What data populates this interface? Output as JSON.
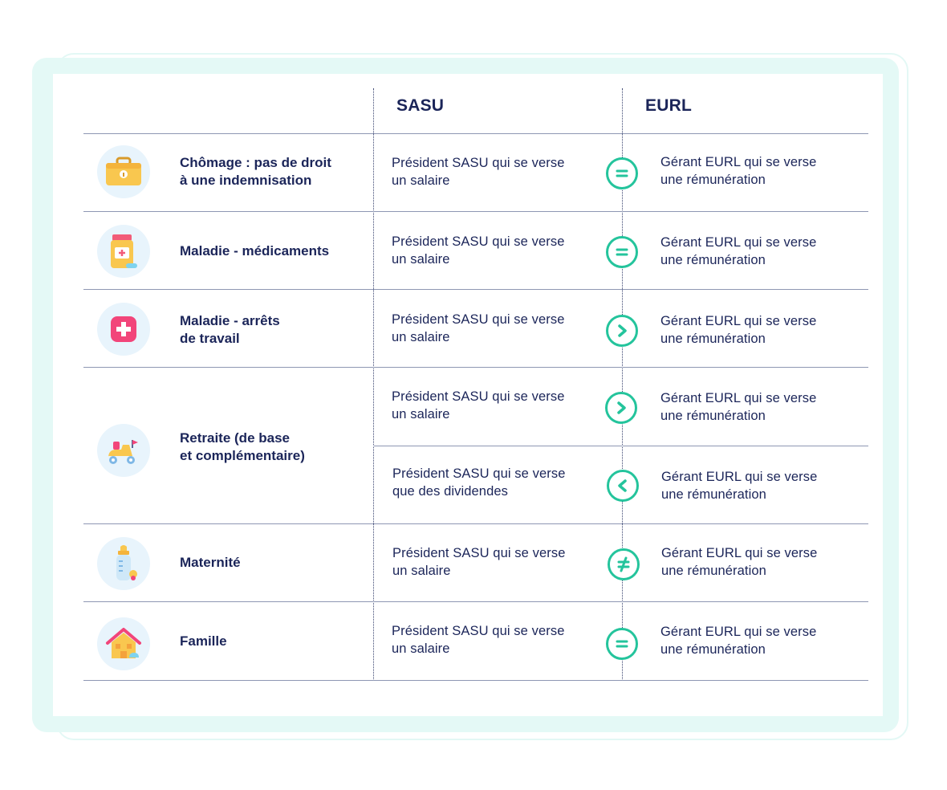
{
  "header": {
    "col1": "SASU",
    "col2": "EURL"
  },
  "rows": [
    {
      "category": "Chômage : pas de droit\nà une indemnisation",
      "icon": "briefcase-icon",
      "sasu": "Président SASU qui se verse\nun salaire",
      "compare": "equal",
      "eurl": "Gérant EURL qui se verse\nune rémunération"
    },
    {
      "category": "Maladie - médicaments",
      "icon": "medicine-jar-icon",
      "sasu": "Président SASU qui se verse\nun salaire",
      "compare": "equal",
      "eurl": "Gérant EURL qui se verse\nune rémunération"
    },
    {
      "category": "Maladie - arrêts\nde travail",
      "icon": "medical-cross-icon",
      "sasu": "Président SASU qui se verse\nun salaire",
      "compare": "greater",
      "eurl": "Gérant EURL qui se verse\nune rémunération"
    },
    {
      "category": "Retraite (de base\net complémentaire)",
      "icon": "mobility-scooter-icon",
      "sub": [
        {
          "sasu": "Président SASU qui se verse\nun salaire",
          "compare": "greater",
          "eurl": "Gérant EURL qui se verse\nune rémunération"
        },
        {
          "sasu": "Président SASU qui se verse\nque des dividendes",
          "compare": "less",
          "eurl": "Gérant EURL qui se verse\nune rémunération"
        }
      ]
    },
    {
      "category": "Maternité",
      "icon": "baby-bottle-icon",
      "sasu": "Président SASU qui se verse\nun salaire",
      "compare": "not-equal",
      "eurl": "Gérant EURL qui se verse\nune rémunération"
    },
    {
      "category": "Famille",
      "icon": "house-icon",
      "sasu": "Président SASU qui se verse\nun salaire",
      "compare": "equal",
      "eurl": "Gérant EURL qui se verse\nune rémunération"
    }
  ],
  "colors": {
    "accent": "#24c49c",
    "text": "#1b2559",
    "frame": "#e4f9f6",
    "icon_bg": "#e8f4fc"
  }
}
